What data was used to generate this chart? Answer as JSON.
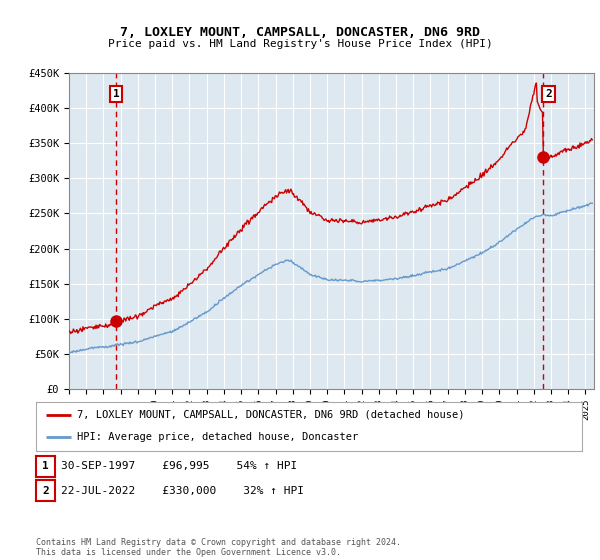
{
  "title": "7, LOXLEY MOUNT, CAMPSALL, DONCASTER, DN6 9RD",
  "subtitle": "Price paid vs. HM Land Registry's House Price Index (HPI)",
  "ylim": [
    0,
    450000
  ],
  "yticks": [
    0,
    50000,
    100000,
    150000,
    200000,
    250000,
    300000,
    350000,
    400000,
    450000
  ],
  "ytick_labels": [
    "£0",
    "£50K",
    "£100K",
    "£150K",
    "£200K",
    "£250K",
    "£300K",
    "£350K",
    "£400K",
    "£450K"
  ],
  "sale1_date_x": 1997.75,
  "sale1_price": 96995,
  "sale1_label": "1",
  "sale1_text": "30-SEP-1997    £96,995    54% ↑ HPI",
  "sale2_date_x": 2022.55,
  "sale2_price": 330000,
  "sale2_label": "2",
  "sale2_text": "22-JUL-2022    £330,000    32% ↑ HPI",
  "hpi_line_color": "#6699cc",
  "sale_line_color": "#cc0000",
  "vline_color": "#cc0000",
  "plot_bg_color": "#dde8f0",
  "background_color": "#ffffff",
  "grid_color": "#ffffff",
  "legend_sale_label": "7, LOXLEY MOUNT, CAMPSALL, DONCASTER, DN6 9RD (detached house)",
  "legend_hpi_label": "HPI: Average price, detached house, Doncaster",
  "footer": "Contains HM Land Registry data © Crown copyright and database right 2024.\nThis data is licensed under the Open Government Licence v3.0.",
  "xlim_start": 1995.0,
  "xlim_end": 2025.5
}
